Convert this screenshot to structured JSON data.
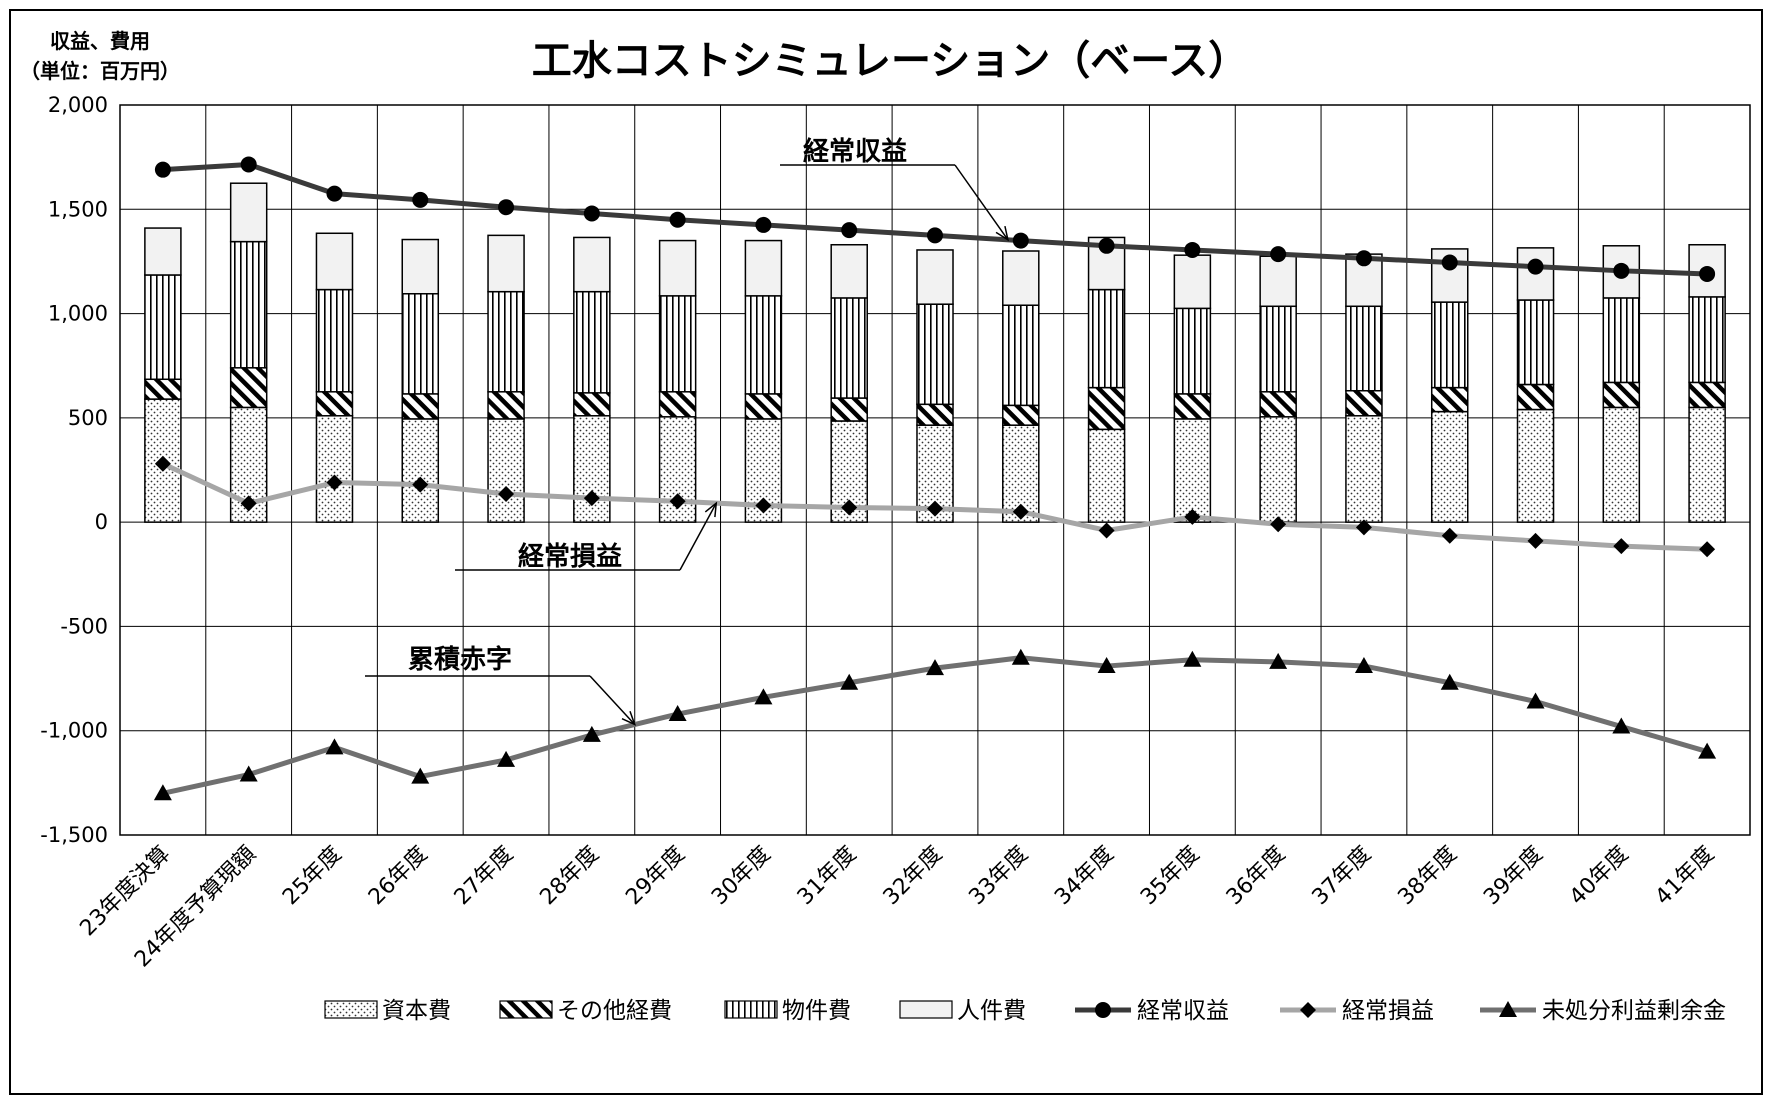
{
  "chart_data": {
    "type": "bar",
    "title": "工水コストシミュレーション（ベース）",
    "unit_label_line1": "収益、費用",
    "unit_label_line2": "（単位：百万円）",
    "xlabel": "",
    "ylabel": "",
    "ylim": [
      -1500,
      2000
    ],
    "y_ticks": [
      2000,
      1500,
      1000,
      500,
      0,
      -500,
      -1000,
      -1500
    ],
    "y_tick_labels": [
      "2,000",
      "1,500",
      "1,000",
      "500",
      "0",
      "-500",
      "-1,000",
      "-1,500"
    ],
    "grid": true,
    "legend_position": "bottom",
    "categories": [
      "23年度決算",
      "24年度予算現額",
      "25年度",
      "26年度",
      "27年度",
      "28年度",
      "29年度",
      "30年度",
      "31年度",
      "32年度",
      "33年度",
      "34年度",
      "35年度",
      "36年度",
      "37年度",
      "38年度",
      "39年度",
      "40年度",
      "41年度"
    ],
    "bar_series": [
      {
        "name": "資本費",
        "pattern": "dots",
        "values": [
          590,
          550,
          510,
          495,
          495,
          510,
          505,
          495,
          485,
          465,
          465,
          445,
          495,
          505,
          510,
          530,
          540,
          550,
          550
        ]
      },
      {
        "name": "その他経費",
        "pattern": "diagonal",
        "values": [
          95,
          190,
          115,
          120,
          130,
          110,
          120,
          120,
          110,
          100,
          95,
          200,
          120,
          120,
          120,
          115,
          120,
          120,
          120
        ]
      },
      {
        "name": "物件費",
        "pattern": "vertical",
        "values": [
          500,
          605,
          490,
          480,
          480,
          485,
          460,
          470,
          480,
          480,
          480,
          470,
          410,
          410,
          405,
          410,
          405,
          405,
          410
        ]
      },
      {
        "name": "人件費",
        "pattern": "solid",
        "values": [
          225,
          280,
          270,
          260,
          270,
          260,
          265,
          265,
          255,
          260,
          260,
          250,
          255,
          240,
          250,
          255,
          250,
          250,
          250
        ]
      }
    ],
    "line_series": [
      {
        "name": "経常収益",
        "marker": "circle",
        "color": "#3a3a3a",
        "values": [
          1690,
          1715,
          1575,
          1545,
          1510,
          1480,
          1450,
          1425,
          1400,
          1375,
          1350,
          1325,
          1305,
          1285,
          1265,
          1245,
          1225,
          1205,
          1190
        ]
      },
      {
        "name": "経常損益",
        "marker": "diamond",
        "color": "#a6a6a6",
        "values": [
          280,
          90,
          190,
          180,
          135,
          115,
          100,
          80,
          70,
          65,
          50,
          -40,
          25,
          -10,
          -25,
          -65,
          -90,
          -115,
          -130
        ]
      },
      {
        "name": "未処分利益剰余金",
        "marker": "triangle",
        "color": "#707070",
        "values": [
          -1300,
          -1210,
          -1080,
          -1220,
          -1140,
          -1020,
          -920,
          -840,
          -770,
          -700,
          -650,
          -690,
          -660,
          -670,
          -690,
          -770,
          -860,
          -980,
          -1100
        ]
      }
    ],
    "annotations": [
      {
        "text": "経常収益",
        "series": "経常収益"
      },
      {
        "text": "経常損益",
        "series": "経常損益"
      },
      {
        "text": "累積赤字",
        "series": "未処分利益剰余金"
      }
    ],
    "legend": [
      "資本費",
      "その他経費",
      "物件費",
      "人件費",
      "経常収益",
      "経常損益",
      "未処分利益剰余金"
    ]
  }
}
